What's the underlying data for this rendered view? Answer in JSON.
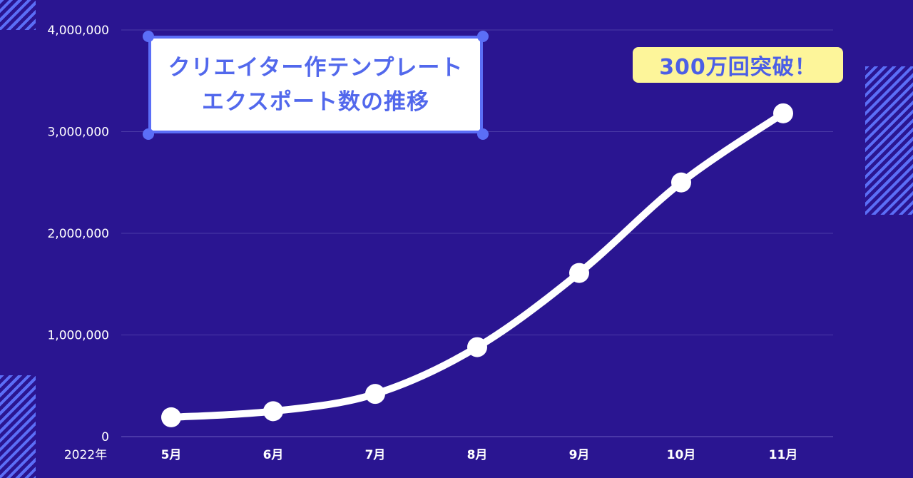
{
  "chart_data": {
    "type": "line",
    "title": "クリエイター作テンプレート\nエクスポート数の推移",
    "title_lines": [
      "クリエイター作テンプレート",
      "エクスポート数の推移"
    ],
    "annotation": "300万回突破！",
    "year_label": "2022年",
    "categories": [
      "5月",
      "6月",
      "7月",
      "8月",
      "9月",
      "10月",
      "11月"
    ],
    "series": [
      {
        "values": [
          190000,
          250000,
          420000,
          880000,
          1610000,
          2500000,
          3180000
        ]
      }
    ],
    "ylim": [
      0,
      4000000
    ],
    "yticks": [
      0,
      1000000,
      2000000,
      3000000,
      4000000
    ],
    "ytick_labels": [
      "0",
      "1,000,000",
      "2,000,000",
      "3,000,000",
      "4,000,000"
    ],
    "grid": true,
    "colors": {
      "background": "#2a1591",
      "line": "#ffffff",
      "grid": "#4a3aa6",
      "accent": "#5b6ef7",
      "badge": "#fdf59a"
    }
  }
}
